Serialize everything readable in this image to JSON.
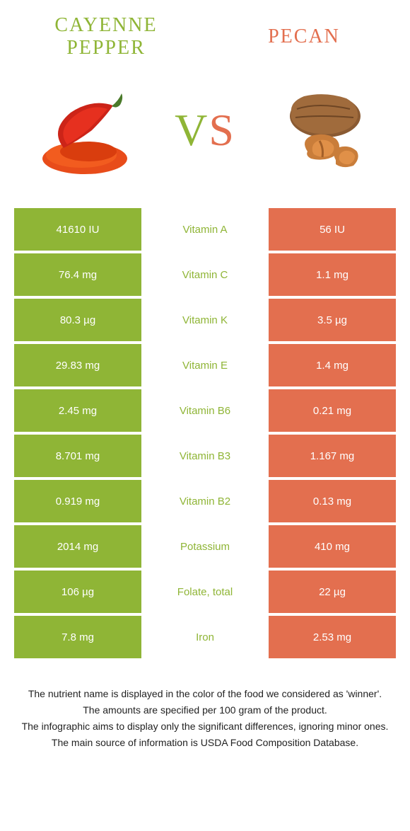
{
  "colors": {
    "left": "#8fb536",
    "right": "#e36f4f",
    "white": "#ffffff",
    "text_dark": "#222222"
  },
  "header": {
    "left_name": "CAYENNE PEPPER",
    "right_name": "PECAN",
    "vs_v": "V",
    "vs_s": "S"
  },
  "typography": {
    "title_font": "Georgia",
    "title_size": 28,
    "vs_size": 64,
    "cell_size": 15,
    "footer_size": 14
  },
  "rows": [
    {
      "nutrient": "Vitamin A",
      "left": "41610 IU",
      "right": "56 IU",
      "winner": "left"
    },
    {
      "nutrient": "Vitamin C",
      "left": "76.4 mg",
      "right": "1.1 mg",
      "winner": "left"
    },
    {
      "nutrient": "Vitamin K",
      "left": "80.3 µg",
      "right": "3.5 µg",
      "winner": "left"
    },
    {
      "nutrient": "Vitamin E",
      "left": "29.83 mg",
      "right": "1.4 mg",
      "winner": "left"
    },
    {
      "nutrient": "Vitamin B6",
      "left": "2.45 mg",
      "right": "0.21 mg",
      "winner": "left"
    },
    {
      "nutrient": "Vitamin B3",
      "left": "8.701 mg",
      "right": "1.167 mg",
      "winner": "left"
    },
    {
      "nutrient": "Vitamin B2",
      "left": "0.919 mg",
      "right": "0.13 mg",
      "winner": "left"
    },
    {
      "nutrient": "Potassium",
      "left": "2014 mg",
      "right": "410 mg",
      "winner": "left"
    },
    {
      "nutrient": "Folate, total",
      "left": "106 µg",
      "right": "22 µg",
      "winner": "left"
    },
    {
      "nutrient": "Iron",
      "left": "7.8 mg",
      "right": "2.53 mg",
      "winner": "left"
    }
  ],
  "footer": [
    "The nutrient name is displayed in the color of the food we considered as 'winner'.",
    "The amounts are specified per 100 gram of the product.",
    "The infographic aims to display only the significant differences, ignoring minor ones.",
    "The main source of information is USDA Food Composition Database."
  ]
}
